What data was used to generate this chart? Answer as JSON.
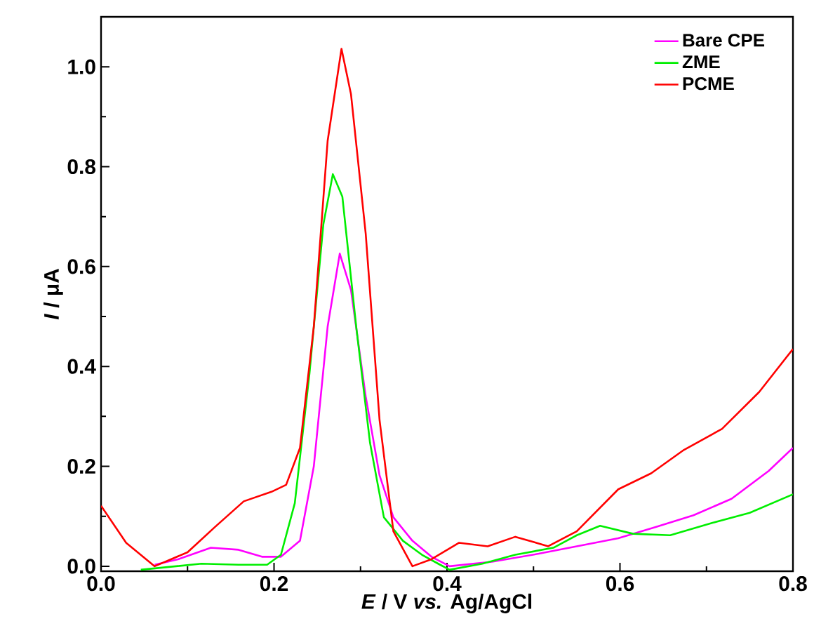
{
  "chart_data": {
    "type": "line",
    "xlabel": "*E* / V *vs.* Ag/AgCl",
    "ylabel": "*I* / μA",
    "legend": "top right",
    "xlim": [
      0,
      0.8
    ],
    "ylim": [
      -0.01,
      1.1
    ],
    "xticks": [
      {
        "value": 0,
        "label": "0.0"
      },
      {
        "value": 0.1,
        "label": null
      },
      {
        "value": 0.2,
        "label": "0.2"
      },
      {
        "value": 0.3,
        "label": null
      },
      {
        "value": 0.4,
        "label": "0.4"
      },
      {
        "value": 0.5,
        "label": null
      },
      {
        "value": 0.6,
        "label": "0.6"
      },
      {
        "value": 0.7,
        "label": null
      },
      {
        "value": 0.8,
        "label": "0.8"
      }
    ],
    "yticks": [
      {
        "value": 0,
        "label": "0.0"
      },
      {
        "value": 0.1,
        "label": null
      },
      {
        "value": 0.2,
        "label": "0.2"
      },
      {
        "value": 0.3,
        "label": null
      },
      {
        "value": 0.4,
        "label": "0.4"
      },
      {
        "value": 0.5,
        "label": null
      },
      {
        "value": 0.6,
        "label": "0.6"
      },
      {
        "value": 0.7,
        "label": null
      },
      {
        "value": 0.8,
        "label": "0.8"
      },
      {
        "value": 0.9,
        "label": null
      },
      {
        "value": 1.0,
        "label": "1.0"
      }
    ],
    "series": [
      {
        "name": "Bare CPE",
        "color": "#ff00ff",
        "x": [
          0.062,
          0.089,
          0.127,
          0.159,
          0.186,
          0.208,
          0.23,
          0.246,
          0.262,
          0.276,
          0.289,
          0.306,
          0.322,
          0.338,
          0.36,
          0.382,
          0.403,
          0.452,
          0.506,
          0.55,
          0.598,
          0.642,
          0.685,
          0.729,
          0.772,
          0.8
        ],
        "values": [
          0.003,
          0.014,
          0.037,
          0.033,
          0.019,
          0.019,
          0.051,
          0.2,
          0.48,
          0.626,
          0.553,
          0.34,
          0.182,
          0.098,
          0.051,
          0.019,
          0.0,
          0.009,
          0.025,
          0.04,
          0.056,
          0.079,
          0.102,
          0.135,
          0.191,
          0.237
        ]
      },
      {
        "name": "ZME",
        "color": "#00ee00",
        "x": [
          0.046,
          0.116,
          0.159,
          0.192,
          0.208,
          0.224,
          0.241,
          0.257,
          0.268,
          0.279,
          0.295,
          0.311,
          0.327,
          0.349,
          0.371,
          0.392,
          0.403,
          0.441,
          0.479,
          0.523,
          0.55,
          0.577,
          0.615,
          0.658,
          0.707,
          0.75,
          0.8
        ],
        "values": [
          -0.007,
          0.005,
          0.003,
          0.003,
          0.023,
          0.126,
          0.386,
          0.684,
          0.785,
          0.74,
          0.48,
          0.247,
          0.098,
          0.051,
          0.023,
          0.003,
          -0.007,
          0.005,
          0.023,
          0.037,
          0.062,
          0.081,
          0.065,
          0.062,
          0.087,
          0.107,
          0.144
        ]
      },
      {
        "name": "PCME",
        "color": "#ff0000",
        "x": [
          0,
          0.029,
          0.062,
          0.1,
          0.132,
          0.165,
          0.197,
          0.214,
          0.23,
          0.246,
          0.262,
          0.278,
          0.289,
          0.306,
          0.322,
          0.338,
          0.36,
          0.382,
          0.414,
          0.447,
          0.479,
          0.517,
          0.55,
          0.598,
          0.636,
          0.674,
          0.718,
          0.761,
          0.8
        ],
        "values": [
          0.121,
          0.047,
          0.0,
          0.028,
          0.079,
          0.13,
          0.149,
          0.163,
          0.237,
          0.48,
          0.852,
          1.036,
          0.945,
          0.666,
          0.293,
          0.07,
          0.0,
          0.014,
          0.047,
          0.04,
          0.059,
          0.04,
          0.07,
          0.154,
          0.186,
          0.233,
          0.275,
          0.349,
          0.435
        ]
      }
    ]
  }
}
